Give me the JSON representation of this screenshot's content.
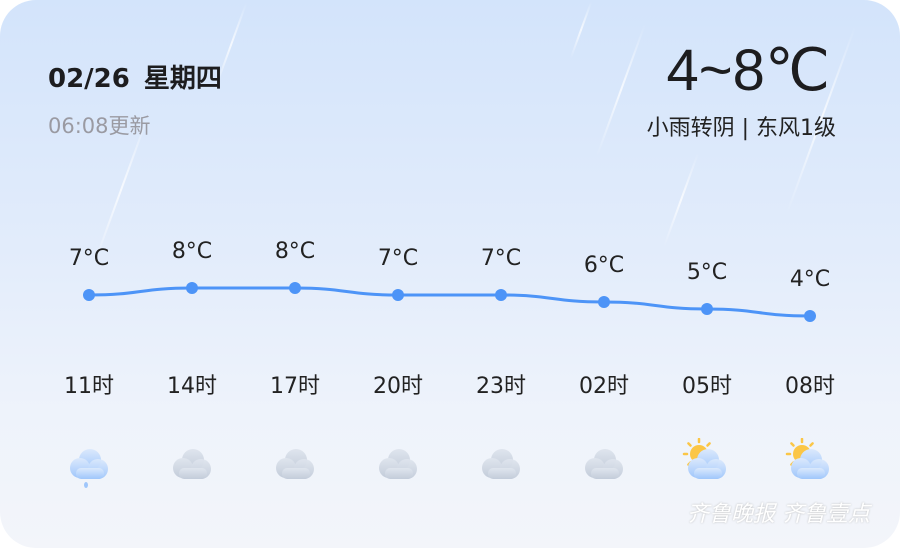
{
  "header": {
    "date": "02/26",
    "weekday": "星期四",
    "updated": "06:08更新",
    "temp_range": "4~8℃",
    "description": "小雨转阴 | 东风1级"
  },
  "hours": [
    {
      "time": "11时",
      "temp_label": "7°C",
      "icon": "light-rain-icon"
    },
    {
      "time": "14时",
      "temp_label": "8°C",
      "icon": "cloudy-icon"
    },
    {
      "time": "17时",
      "temp_label": "8°C",
      "icon": "cloudy-icon"
    },
    {
      "time": "20时",
      "temp_label": "7°C",
      "icon": "cloudy-icon"
    },
    {
      "time": "23时",
      "temp_label": "7°C",
      "icon": "cloudy-icon"
    },
    {
      "time": "02时",
      "temp_label": "6°C",
      "icon": "cloudy-icon"
    },
    {
      "time": "05时",
      "temp_label": "5°C",
      "icon": "partly-cloudy-icon"
    },
    {
      "time": "08时",
      "temp_label": "4°C",
      "icon": "partly-cloudy-icon"
    }
  ],
  "chart_data": {
    "type": "line",
    "categories": [
      "11时",
      "14时",
      "17时",
      "20时",
      "23时",
      "02时",
      "05时",
      "08时"
    ],
    "values": [
      7,
      8,
      8,
      7,
      7,
      6,
      5,
      4
    ],
    "color": "#4d94f7"
  },
  "watermark": "齐鲁晚报 齐鲁壹点"
}
